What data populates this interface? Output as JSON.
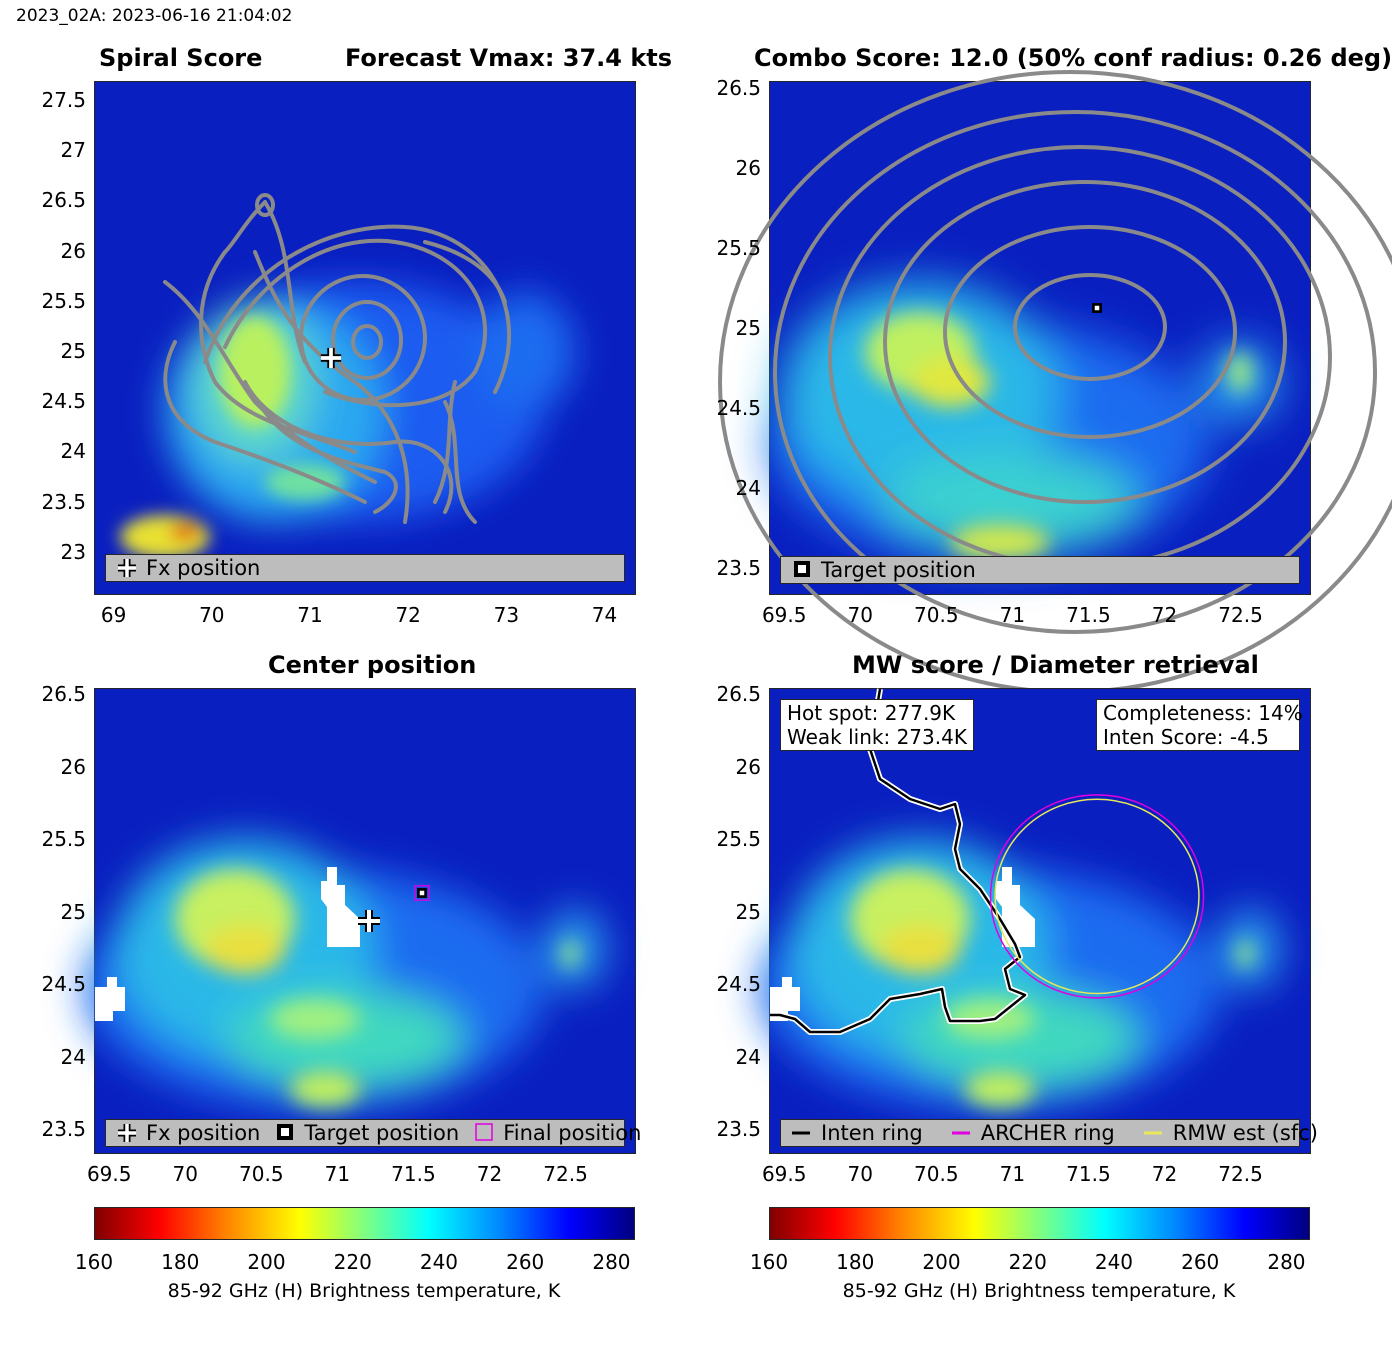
{
  "header": {
    "text": "2023_02A: 2023-06-16 21:04:02"
  },
  "panels": {
    "spiral": {
      "title_left": "Spiral Score",
      "title_right": "Forecast Vmax: 37.4 kts",
      "legend": [
        "Fx position"
      ]
    },
    "combo": {
      "title": "Combo Score: 12.0  (50% conf radius: 0.26 deg)",
      "legend": [
        "Target position"
      ]
    },
    "center": {
      "title": "Center position",
      "legend": [
        "Fx position",
        "Target position",
        "Final position"
      ]
    },
    "mw": {
      "title": "MW score / Diameter retrieval",
      "info_left": [
        "Hot spot: 277.9K",
        "Weak link: 273.4K"
      ],
      "info_right": [
        "Completeness: 14%",
        "Inten Score: -4.5"
      ],
      "legend": [
        "Inten ring",
        "ARCHER ring",
        "RMW est (sfc)"
      ]
    }
  },
  "colorbar": {
    "ticks": [
      "160",
      "180",
      "200",
      "220",
      "240",
      "260",
      "280"
    ],
    "label": "85-92 GHz (H) Brightness temperature, K",
    "range": [
      160,
      285
    ]
  },
  "colors": {
    "background_cold": "#0a1fc0",
    "contour": "#8a8a8a",
    "archer_ring": "#e000e0",
    "rmw_ring": "#e8e85a",
    "inten_ring": "#000000"
  },
  "chart_data": [
    {
      "type": "heatmap",
      "name": "spiral",
      "title": "Spiral Score",
      "subtitle": "Forecast Vmax: 37.4 kts",
      "xlim": [
        68.8,
        74.3
      ],
      "ylim": [
        22.6,
        27.7
      ],
      "xticks": [
        "69",
        "70",
        "71",
        "72",
        "73",
        "74"
      ],
      "yticks": [
        "23",
        "23.5",
        "24",
        "24.5",
        "25",
        "25.5",
        "26",
        "26.5",
        "27",
        "27.5"
      ],
      "xtick_values": [
        69,
        70,
        71,
        72,
        73,
        74
      ],
      "ytick_values": [
        23,
        23.5,
        24,
        24.5,
        25,
        25.5,
        26,
        26.5,
        27,
        27.5
      ],
      "markers": [
        {
          "label": "Fx position",
          "lon": 71.2,
          "lat": 24.95
        }
      ],
      "contour_center": {
        "lon": 71.6,
        "lat": 25.1
      }
    },
    {
      "type": "heatmap",
      "name": "combo",
      "title": "Combo Score: 12.0  (50% conf radius: 0.26 deg)",
      "xlim": [
        69.4,
        72.95
      ],
      "ylim": [
        23.35,
        26.55
      ],
      "xticks": [
        "69.5",
        "70",
        "70.5",
        "71",
        "71.5",
        "72",
        "72.5"
      ],
      "yticks": [
        "23.5",
        "24",
        "24.5",
        "25",
        "25.5",
        "26",
        "26.5"
      ],
      "xtick_values": [
        69.5,
        70,
        70.5,
        71,
        71.5,
        72,
        72.5
      ],
      "ytick_values": [
        23.5,
        24,
        24.5,
        25,
        25.5,
        26,
        26.5
      ],
      "markers": [
        {
          "label": "Target position",
          "lon": 71.55,
          "lat": 25.14
        }
      ]
    },
    {
      "type": "heatmap",
      "name": "center",
      "title": "Center position",
      "xlim": [
        69.4,
        72.95
      ],
      "ylim": [
        23.35,
        26.55
      ],
      "xticks": [
        "69.5",
        "70",
        "70.5",
        "71",
        "71.5",
        "72",
        "72.5"
      ],
      "yticks": [
        "23.5",
        "24",
        "24.5",
        "25",
        "25.5",
        "26",
        "26.5"
      ],
      "xtick_values": [
        69.5,
        70,
        70.5,
        71,
        71.5,
        72,
        72.5
      ],
      "ytick_values": [
        23.5,
        24,
        24.5,
        25,
        25.5,
        26,
        26.5
      ],
      "markers": [
        {
          "label": "Fx position",
          "lon": 71.2,
          "lat": 24.95
        },
        {
          "label": "Target position",
          "lon": 71.55,
          "lat": 25.14
        },
        {
          "label": "Final position",
          "lon": 71.55,
          "lat": 25.14
        }
      ]
    },
    {
      "type": "heatmap",
      "name": "mw",
      "title": "MW score / Diameter retrieval",
      "xlim": [
        69.4,
        72.95
      ],
      "ylim": [
        23.35,
        26.55
      ],
      "xticks": [
        "69.5",
        "70",
        "70.5",
        "71",
        "71.5",
        "72",
        "72.5"
      ],
      "yticks": [
        "23.5",
        "24",
        "24.5",
        "25",
        "25.5",
        "26",
        "26.5"
      ],
      "xtick_values": [
        69.5,
        70,
        70.5,
        71,
        71.5,
        72,
        72.5
      ],
      "ytick_values": [
        23.5,
        24,
        24.5,
        25,
        25.5,
        26,
        26.5
      ],
      "rings": [
        {
          "label": "ARCHER ring",
          "lon": 71.55,
          "lat": 25.12,
          "radius_deg": 0.7
        },
        {
          "label": "RMW est (sfc)",
          "lon": 71.55,
          "lat": 25.12,
          "radius_deg": 0.67
        }
      ],
      "hot_spot_K": 277.9,
      "weak_link_K": 273.4,
      "completeness_pct": 14,
      "inten_score": -4.5
    }
  ]
}
